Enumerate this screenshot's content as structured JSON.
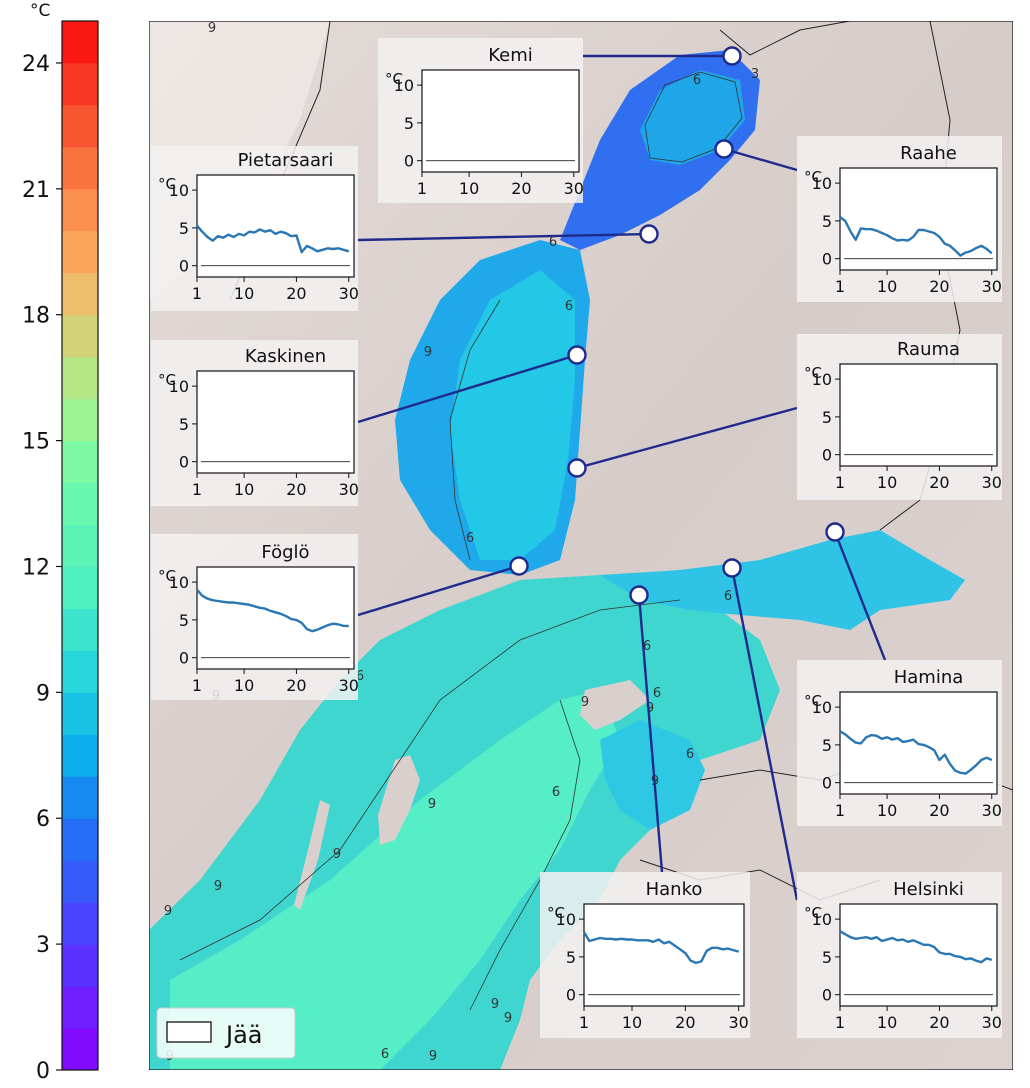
{
  "colorbar": {
    "unit": "°C",
    "min": 0,
    "max": 25,
    "ticks": [
      0,
      3,
      6,
      9,
      12,
      15,
      18,
      21,
      24
    ],
    "tick_labels": [
      "0",
      "3",
      "6",
      "9",
      "12",
      "15",
      "18",
      "21",
      "24"
    ],
    "bands": 25,
    "colormap": "rainbow (violet → blue → cyan → green → yellow → orange → red)"
  },
  "map": {
    "background_land": "#d8cfcc",
    "sea_colors": [
      "#2e6ff0",
      "#1fa6e8",
      "#1ccbe6",
      "#38dcd0",
      "#50ecc8"
    ],
    "contour_labels": [
      "9",
      "6",
      "3",
      "6",
      "6",
      "9",
      "6",
      "6",
      "6",
      "9",
      "6",
      "9",
      "6",
      "9",
      "9",
      "9",
      "9",
      "9",
      "9",
      "6",
      "9",
      "9",
      "9",
      "6",
      "6",
      "9"
    ]
  },
  "legend": {
    "label": "Jää",
    "swatch_fill": "#ffffff"
  },
  "chart_data": [
    {
      "type": "line",
      "title": "Kemi",
      "yunit": "°C",
      "xlim": [
        1,
        31
      ],
      "ylim": [
        -1.5,
        12
      ],
      "xticks": [
        1,
        10,
        20,
        30
      ],
      "yticks": [
        0,
        5,
        10
      ],
      "x": [],
      "values": []
    },
    {
      "type": "line",
      "title": "Pietarsaari",
      "yunit": "°C",
      "xlim": [
        1,
        31
      ],
      "ylim": [
        -1.5,
        12
      ],
      "xticks": [
        1,
        10,
        20,
        30
      ],
      "yticks": [
        0,
        5,
        10
      ],
      "x": [
        1,
        2,
        3,
        4,
        5,
        6,
        7,
        8,
        9,
        10,
        11,
        12,
        13,
        14,
        15,
        16,
        17,
        18,
        19,
        20,
        21,
        22,
        23,
        24,
        25,
        26,
        27,
        28,
        29,
        30
      ],
      "values": [
        5.3,
        4.5,
        3.8,
        3.3,
        3.9,
        3.7,
        4.1,
        3.8,
        4.2,
        4.0,
        4.5,
        4.4,
        4.8,
        4.5,
        4.7,
        4.2,
        4.5,
        4.3,
        3.9,
        4.0,
        1.8,
        2.6,
        2.3,
        1.9,
        2.1,
        2.3,
        2.2,
        2.3,
        2.1,
        1.9
      ]
    },
    {
      "type": "line",
      "title": "Raahe",
      "yunit": "°C",
      "xlim": [
        1,
        31
      ],
      "ylim": [
        -1.5,
        12
      ],
      "xticks": [
        1,
        10,
        20,
        30
      ],
      "yticks": [
        0,
        5,
        10
      ],
      "x": [
        1,
        2,
        3,
        4,
        5,
        6,
        7,
        8,
        9,
        10,
        11,
        12,
        13,
        14,
        15,
        16,
        17,
        18,
        19,
        20,
        21,
        22,
        23,
        24,
        25,
        26,
        27,
        28,
        29,
        30
      ],
      "values": [
        5.5,
        5.0,
        3.6,
        2.5,
        4.0,
        3.9,
        3.9,
        3.7,
        3.4,
        3.1,
        2.7,
        2.4,
        2.5,
        2.4,
        2.9,
        3.8,
        3.8,
        3.6,
        3.4,
        2.9,
        2.0,
        1.7,
        1.1,
        0.4,
        0.8,
        1.0,
        1.4,
        1.7,
        1.3,
        0.7
      ]
    },
    {
      "type": "line",
      "title": "Kaskinen",
      "yunit": "°C",
      "xlim": [
        1,
        31
      ],
      "ylim": [
        -1.5,
        12
      ],
      "xticks": [
        1,
        10,
        20,
        30
      ],
      "yticks": [
        0,
        5,
        10
      ],
      "x": [],
      "values": []
    },
    {
      "type": "line",
      "title": "Rauma",
      "yunit": "°C",
      "xlim": [
        1,
        31
      ],
      "ylim": [
        -1.5,
        12
      ],
      "xticks": [
        1,
        10,
        20,
        30
      ],
      "yticks": [
        0,
        5,
        10
      ],
      "x": [],
      "values": []
    },
    {
      "type": "line",
      "title": "Föglö",
      "yunit": "°C",
      "xlim": [
        1,
        31
      ],
      "ylim": [
        -1.5,
        12
      ],
      "xticks": [
        1,
        10,
        20,
        30
      ],
      "yticks": [
        0,
        5,
        10
      ],
      "x": [
        1,
        2,
        3,
        4,
        5,
        6,
        7,
        8,
        9,
        10,
        11,
        12,
        13,
        14,
        15,
        16,
        17,
        18,
        19,
        20,
        21,
        22,
        23,
        24,
        25,
        26,
        27,
        28,
        29,
        30
      ],
      "values": [
        9.0,
        8.2,
        7.8,
        7.6,
        7.5,
        7.4,
        7.3,
        7.3,
        7.2,
        7.1,
        7.0,
        6.8,
        6.6,
        6.5,
        6.2,
        6.0,
        5.8,
        5.5,
        5.1,
        5.0,
        4.6,
        3.8,
        3.5,
        3.7,
        4.0,
        4.3,
        4.5,
        4.4,
        4.2,
        4.2
      ]
    },
    {
      "type": "line",
      "title": "Hamina",
      "yunit": "°C",
      "xlim": [
        1,
        31
      ],
      "ylim": [
        -1.5,
        12
      ],
      "xticks": [
        1,
        10,
        20,
        30
      ],
      "yticks": [
        0,
        5,
        10
      ],
      "x": [
        1,
        2,
        3,
        4,
        5,
        6,
        7,
        8,
        9,
        10,
        11,
        12,
        13,
        14,
        15,
        16,
        17,
        18,
        19,
        20,
        21,
        22,
        23,
        24,
        25,
        26,
        27,
        28,
        29,
        30
      ],
      "values": [
        6.8,
        6.4,
        5.8,
        5.3,
        5.2,
        6.0,
        6.3,
        6.2,
        5.8,
        6.0,
        5.7,
        5.9,
        5.4,
        5.5,
        5.7,
        5.1,
        5.0,
        4.7,
        4.3,
        3.0,
        3.7,
        2.5,
        1.6,
        1.3,
        1.2,
        1.7,
        2.3,
        3.0,
        3.3,
        3.0
      ]
    },
    {
      "type": "line",
      "title": "Hanko",
      "yunit": "°C",
      "xlim": [
        1,
        31
      ],
      "ylim": [
        -1.5,
        12
      ],
      "xticks": [
        1,
        10,
        20,
        30
      ],
      "yticks": [
        0,
        5,
        10
      ],
      "x": [
        1,
        2,
        3,
        4,
        5,
        6,
        7,
        8,
        9,
        10,
        11,
        12,
        13,
        14,
        15,
        16,
        17,
        18,
        19,
        20,
        21,
        22,
        23,
        24,
        25,
        26,
        27,
        28,
        29,
        30
      ],
      "values": [
        8.3,
        7.1,
        7.3,
        7.5,
        7.4,
        7.4,
        7.3,
        7.4,
        7.3,
        7.3,
        7.2,
        7.2,
        7.2,
        7.0,
        7.3,
        6.8,
        7.0,
        6.5,
        6.0,
        5.5,
        4.5,
        4.2,
        4.4,
        5.8,
        6.2,
        6.2,
        6.0,
        6.1,
        5.9,
        5.7
      ]
    },
    {
      "type": "line",
      "title": "Helsinki",
      "yunit": "°C",
      "xlim": [
        1,
        31
      ],
      "ylim": [
        -1.5,
        12
      ],
      "xticks": [
        1,
        10,
        20,
        30
      ],
      "yticks": [
        0,
        5,
        10
      ],
      "x": [
        1,
        2,
        3,
        4,
        5,
        6,
        7,
        8,
        9,
        10,
        11,
        12,
        13,
        14,
        15,
        16,
        17,
        18,
        19,
        20,
        21,
        22,
        23,
        24,
        25,
        26,
        27,
        28,
        29,
        30
      ],
      "values": [
        8.4,
        8.0,
        7.6,
        7.4,
        7.5,
        7.6,
        7.4,
        7.6,
        7.1,
        7.3,
        7.5,
        7.2,
        7.3,
        7.0,
        7.2,
        6.9,
        6.6,
        6.6,
        6.3,
        5.6,
        5.4,
        5.4,
        5.1,
        5.0,
        4.7,
        4.8,
        4.5,
        4.3,
        4.8,
        4.6
      ]
    }
  ]
}
